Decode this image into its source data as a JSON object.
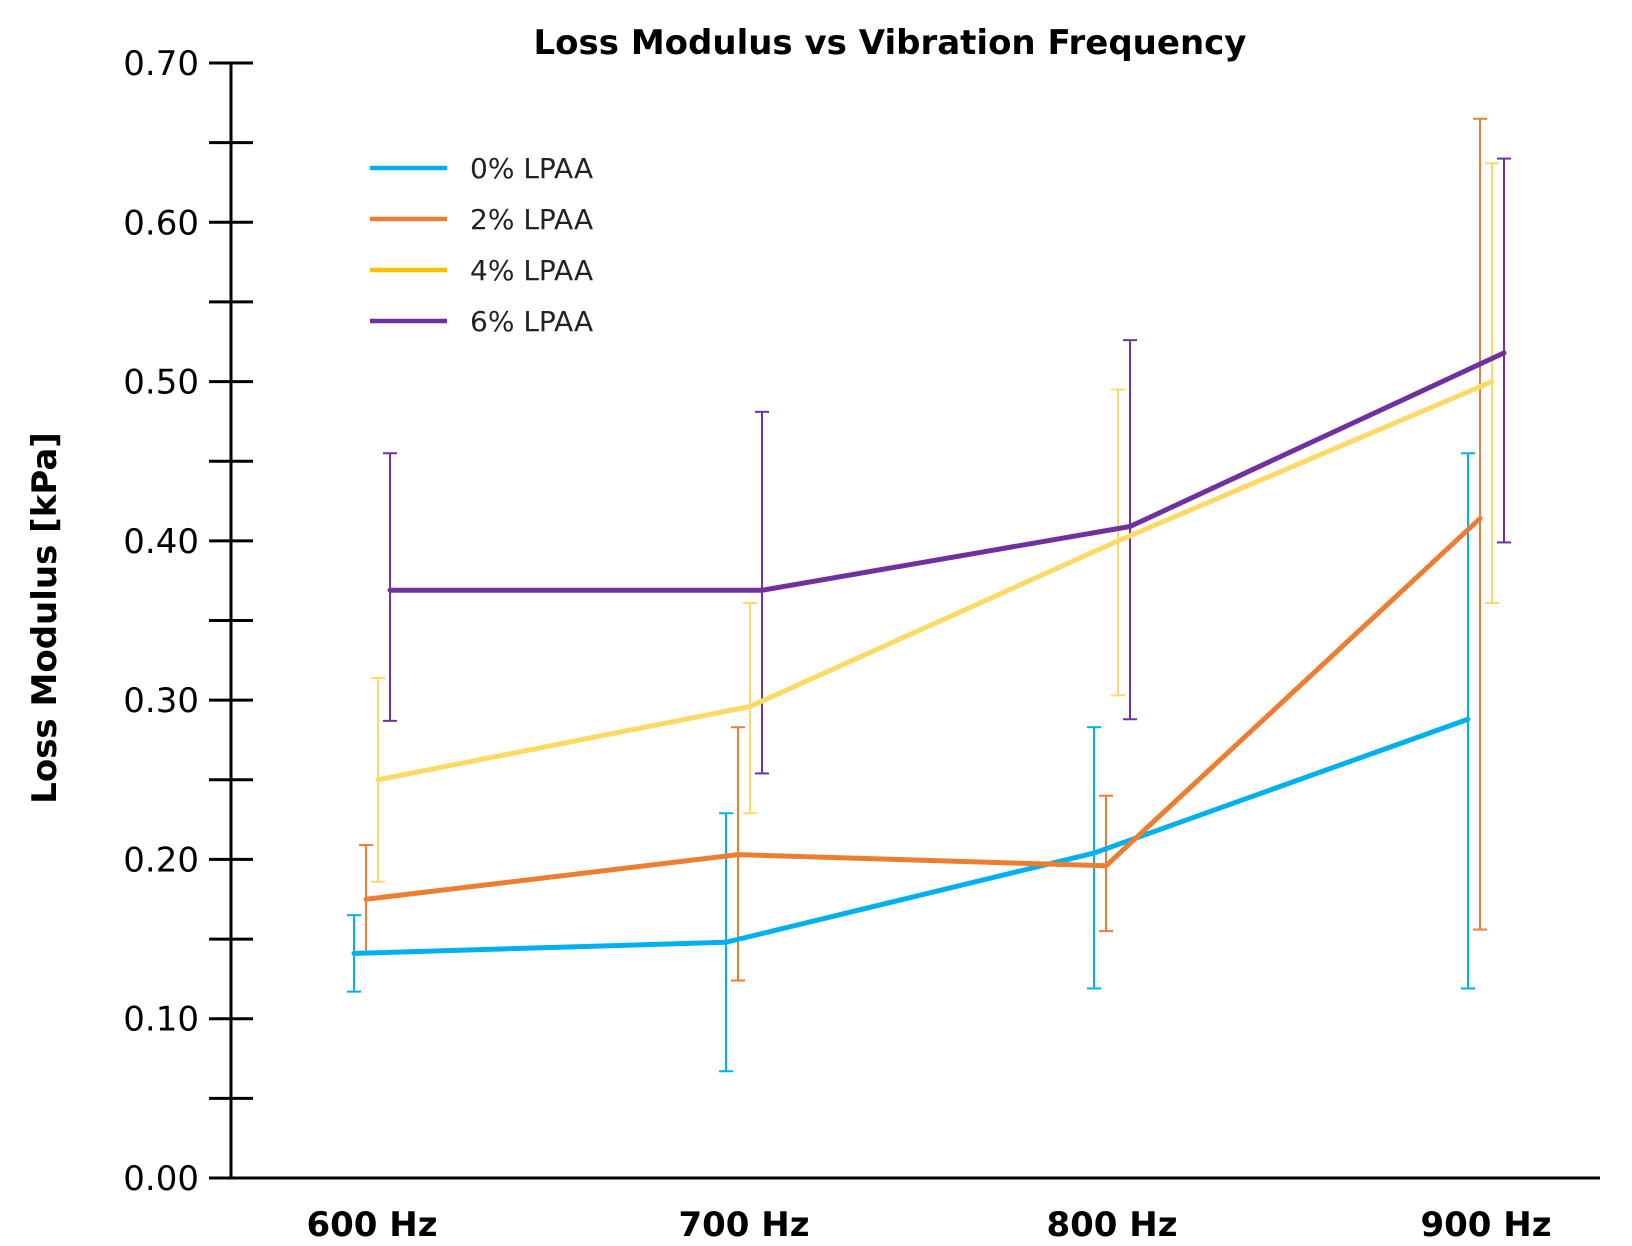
{
  "chart_data": {
    "type": "line",
    "title": "Loss Modulus vs Vibration Frequency",
    "xlabel": "",
    "ylabel": "Loss Modulus [kPa]",
    "ylim": [
      0,
      0.7
    ],
    "y_ticks": [
      "0.00",
      "0.10",
      "0.20",
      "0.30",
      "0.40",
      "0.50",
      "0.60",
      "0.70"
    ],
    "y_tick_values": [
      0,
      0.1,
      0.2,
      0.3,
      0.4,
      0.5,
      0.6,
      0.7
    ],
    "y_minor_tick_values": [
      0.05,
      0.15,
      0.25,
      0.35,
      0.45,
      0.55,
      0.65
    ],
    "categories": [
      "600 Hz",
      "700 Hz",
      "800 Hz",
      "900 Hz"
    ],
    "grid": false,
    "legend_position": "top-left",
    "series": [
      {
        "name": "0% LPAA",
        "color": "#00b0f0",
        "values": [
          0.141,
          0.148,
          0.204,
          0.288
        ],
        "error_low": [
          0.117,
          0.067,
          0.119,
          0.119
        ],
        "error_high": [
          0.165,
          0.229,
          0.283,
          0.455
        ]
      },
      {
        "name": "2% LPAA",
        "color": "#ed7d31",
        "values": [
          0.175,
          0.203,
          0.196,
          0.414
        ],
        "error_low": [
          0.141,
          0.124,
          0.155,
          0.156
        ],
        "error_high": [
          0.209,
          0.283,
          0.24,
          0.665
        ]
      },
      {
        "name": "4% LPAA",
        "color": "#ffd966",
        "legend_color": "#ffc000",
        "values": [
          0.25,
          0.296,
          0.4,
          0.5
        ],
        "error_low": [
          0.186,
          0.229,
          0.303,
          0.361
        ],
        "error_high": [
          0.314,
          0.361,
          0.495,
          0.637
        ]
      },
      {
        "name": "6% LPAA",
        "color": "#7030a0",
        "values": [
          0.369,
          0.369,
          0.409,
          0.518
        ],
        "error_low": [
          0.287,
          0.254,
          0.288,
          0.399
        ],
        "error_high": [
          0.455,
          0.481,
          0.526,
          0.64
        ]
      }
    ]
  }
}
